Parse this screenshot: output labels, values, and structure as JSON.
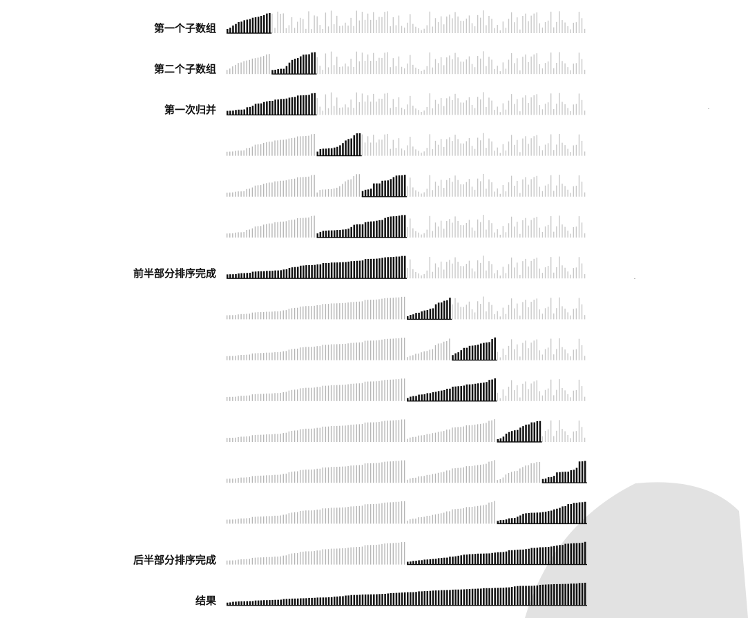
{
  "figure": {
    "title": "",
    "n_elements": 128,
    "rows": [
      {
        "label": "第一个子数组",
        "active": [
          0,
          16
        ],
        "sorted_gray": [],
        "dark_color": "#111111"
      },
      {
        "label": "第二个子数组",
        "active": [
          16,
          32
        ],
        "sorted_gray": [
          [
            0,
            16
          ]
        ]
      },
      {
        "label": "第一次归并",
        "active": [
          0,
          32
        ],
        "sorted_gray": []
      },
      {
        "label": "",
        "active": [
          32,
          48
        ],
        "sorted_gray": [
          [
            0,
            32
          ]
        ]
      },
      {
        "label": "",
        "active": [
          48,
          64
        ],
        "sorted_gray": [
          [
            0,
            32
          ],
          [
            32,
            48
          ]
        ]
      },
      {
        "label": "",
        "active": [
          32,
          64
        ],
        "sorted_gray": [
          [
            0,
            32
          ]
        ]
      },
      {
        "label": "前半部分排序完成",
        "active": [
          0,
          64
        ],
        "sorted_gray": []
      },
      {
        "label": "",
        "active": [
          64,
          80
        ],
        "sorted_gray": [
          [
            0,
            64
          ]
        ]
      },
      {
        "label": "",
        "active": [
          80,
          96
        ],
        "sorted_gray": [
          [
            0,
            64
          ],
          [
            64,
            80
          ]
        ]
      },
      {
        "label": "",
        "active": [
          64,
          96
        ],
        "sorted_gray": [
          [
            0,
            64
          ]
        ]
      },
      {
        "label": "",
        "active": [
          96,
          112
        ],
        "sorted_gray": [
          [
            0,
            64
          ],
          [
            64,
            96
          ]
        ]
      },
      {
        "label": "",
        "active": [
          112,
          128
        ],
        "sorted_gray": [
          [
            0,
            64
          ],
          [
            64,
            96
          ],
          [
            96,
            112
          ]
        ]
      },
      {
        "label": "",
        "active": [
          96,
          128
        ],
        "sorted_gray": [
          [
            0,
            64
          ],
          [
            64,
            96
          ]
        ]
      },
      {
        "label": "后半部分排序完成",
        "active": [
          64,
          128
        ],
        "sorted_gray": [
          [
            0,
            64
          ]
        ]
      },
      {
        "label": "结果",
        "active": [
          0,
          128
        ],
        "sorted_gray": []
      }
    ]
  },
  "colors": {
    "active_bar": "#111111",
    "sorted_bar": "#b5b5b5",
    "unsorted_bar": "#c8c8c8",
    "watermark": "#e2e2e2"
  }
}
